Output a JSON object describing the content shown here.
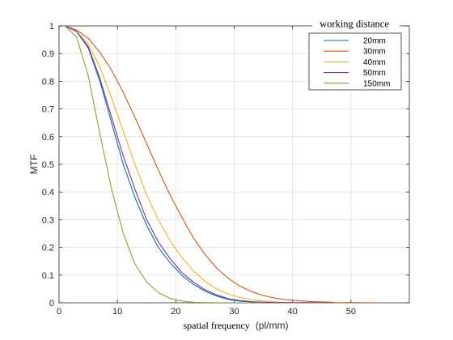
{
  "chart_data": {
    "type": "line",
    "xlabel_main": "spatial frequency",
    "xlabel_unit": "(pl/mm)",
    "ylabel": "MTF",
    "xlim": [
      0,
      60
    ],
    "ylim": [
      0,
      1
    ],
    "xticks": [
      0,
      10,
      20,
      30,
      40,
      50
    ],
    "yticks": [
      0,
      0.1,
      0.2,
      0.3,
      0.4,
      0.5,
      0.6,
      0.7,
      0.8,
      0.9,
      1
    ],
    "grid": true,
    "legend": {
      "title": "working distance",
      "placement": "top-right"
    },
    "series": [
      {
        "name": "20mm",
        "color": "#0072BD",
        "x": [
          1,
          3,
          5,
          7,
          9,
          11,
          13,
          15,
          17,
          19,
          21,
          23,
          25,
          27,
          29,
          31,
          33,
          35,
          37,
          39,
          41,
          43,
          45,
          47
        ],
        "y": [
          1.0,
          0.98,
          0.92,
          0.8,
          0.65,
          0.5,
          0.38,
          0.28,
          0.2,
          0.145,
          0.1,
          0.067,
          0.042,
          0.024,
          0.012,
          0.006,
          0.003,
          0.0015,
          0.0008,
          0.0004,
          0.0002,
          0.0001,
          5e-05,
          0
        ]
      },
      {
        "name": "30mm",
        "color": "#D95319",
        "x": [
          1,
          3,
          5,
          7,
          9,
          11,
          13,
          15,
          17,
          19,
          21,
          23,
          25,
          27,
          29,
          31,
          33,
          35,
          37,
          39,
          41,
          43,
          45,
          47,
          49,
          51,
          53,
          55
        ],
        "y": [
          1.0,
          0.985,
          0.955,
          0.905,
          0.84,
          0.76,
          0.67,
          0.575,
          0.48,
          0.39,
          0.31,
          0.235,
          0.175,
          0.125,
          0.088,
          0.06,
          0.04,
          0.026,
          0.017,
          0.011,
          0.007,
          0.0045,
          0.003,
          0.0018,
          0.001,
          0.0006,
          0.0003,
          0
        ]
      },
      {
        "name": "40mm",
        "color": "#EDB120",
        "x": [
          1,
          3,
          5,
          7,
          9,
          11,
          13,
          15,
          17,
          19,
          21,
          23,
          25,
          27,
          29,
          31,
          33,
          35,
          37,
          39,
          41,
          43,
          45,
          47,
          49
        ],
        "y": [
          1.0,
          0.98,
          0.935,
          0.85,
          0.74,
          0.62,
          0.5,
          0.39,
          0.3,
          0.225,
          0.165,
          0.115,
          0.078,
          0.05,
          0.031,
          0.019,
          0.011,
          0.006,
          0.003,
          0.0015,
          0.0008,
          0.0004,
          0.0002,
          0.0001,
          0
        ]
      },
      {
        "name": "50mm",
        "color": "#7E2F8E",
        "x": [
          1,
          3,
          5,
          7,
          9,
          11,
          13,
          15,
          17,
          19,
          21,
          23,
          25,
          27,
          29,
          31,
          33,
          35,
          37,
          39,
          41,
          43,
          45,
          47
        ],
        "y": [
          1.0,
          0.98,
          0.925,
          0.81,
          0.67,
          0.53,
          0.41,
          0.3,
          0.22,
          0.16,
          0.11,
          0.075,
          0.047,
          0.028,
          0.015,
          0.008,
          0.004,
          0.002,
          0.001,
          0.0005,
          0.0002,
          0.0001,
          5e-05,
          0
        ]
      },
      {
        "name": "150mm",
        "color": "#77AC30",
        "x": [
          1,
          3,
          5,
          7,
          9,
          11,
          13,
          15,
          17,
          19,
          21,
          23,
          25,
          27,
          29,
          31,
          33,
          35
        ],
        "y": [
          1.0,
          0.96,
          0.82,
          0.61,
          0.41,
          0.25,
          0.14,
          0.075,
          0.037,
          0.016,
          0.006,
          0.002,
          0.0008,
          0.0003,
          0.0001,
          5e-05,
          2e-05,
          0
        ]
      }
    ]
  }
}
